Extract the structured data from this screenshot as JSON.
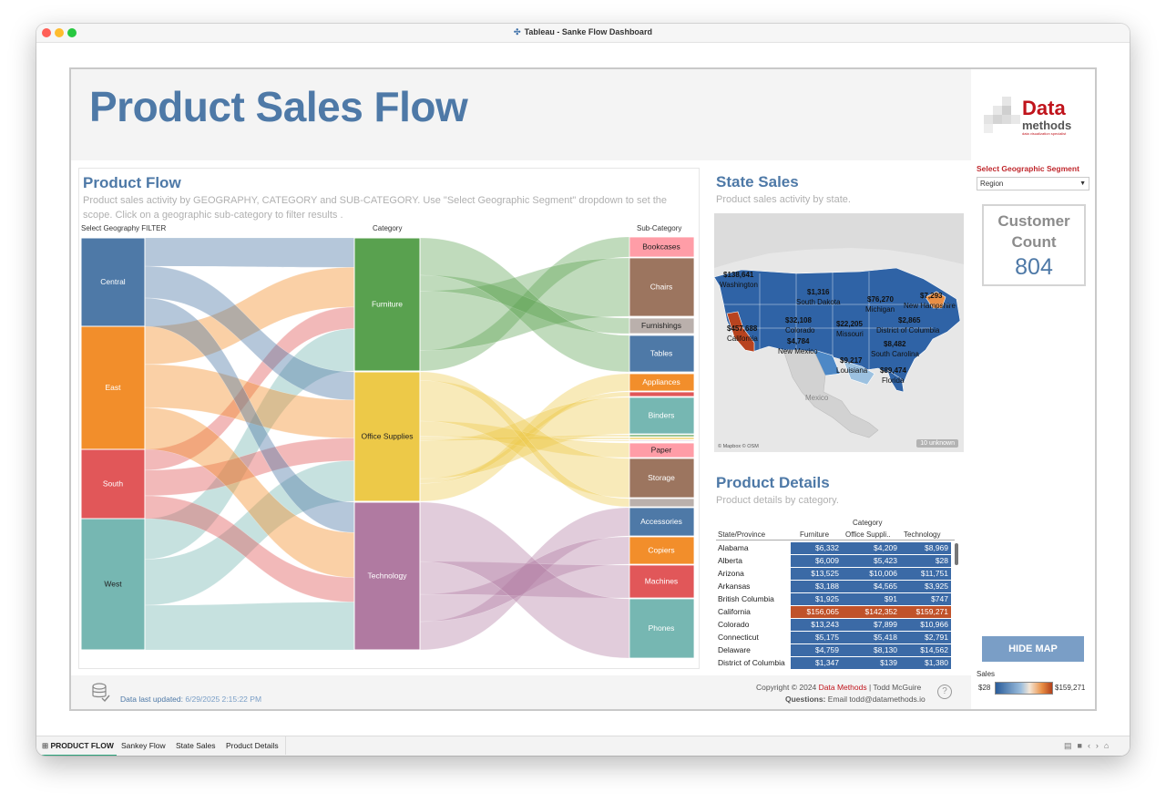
{
  "window": {
    "title": "Tableau - Sanke Flow Dashboard",
    "title_icon": "tableau-icon",
    "traffic_lights": [
      "#ff5f57",
      "#febc2e",
      "#28c840"
    ]
  },
  "header": {
    "title": "Product Sales Flow",
    "logo": {
      "word1": "Data",
      "word2": "methods",
      "tagline": "data visualization specialist"
    }
  },
  "product_flow": {
    "title": "Product Flow",
    "description": "Product sales activity by GEOGRAPHY, CATEGORY and SUB-CATEGORY.  Use \"Select Geographic Segment\" dropdown to set the scope.  Click on a geographic sub-category to filter results  .",
    "col_headers": [
      "Select Geography FILTER",
      "Category",
      "Sub-Category"
    ],
    "regions": [
      {
        "name": "Central",
        "color": "#4e79a7"
      },
      {
        "name": "East",
        "color": "#f28e2b"
      },
      {
        "name": "South",
        "color": "#e15759"
      },
      {
        "name": "West",
        "color": "#76b7b2"
      }
    ],
    "categories": [
      {
        "name": "Furniture",
        "color": "#59a14f",
        "flow": "#9fce97"
      },
      {
        "name": "Office Supplies",
        "color": "#edc948",
        "flow": "#f5e39a"
      },
      {
        "name": "Technology",
        "color": "#b07aa1",
        "flow": "#d6b5cd"
      }
    ],
    "subcategories": [
      {
        "name": "Bookcases",
        "color": "#ff9da7"
      },
      {
        "name": "Chairs",
        "color": "#9c755f"
      },
      {
        "name": "Furnishings",
        "color": "#bab0ac"
      },
      {
        "name": "Tables",
        "color": "#4e79a7"
      },
      {
        "name": "Appliances",
        "color": "#f28e2b"
      },
      {
        "name": "",
        "color": "#e15759"
      },
      {
        "name": "Binders",
        "color": "#76b7b2"
      },
      {
        "name": "",
        "color": "#59a14f"
      },
      {
        "name": "",
        "color": "#edc948"
      },
      {
        "name": "",
        "color": "#b07aa1"
      },
      {
        "name": "Paper",
        "color": "#ff9da7"
      },
      {
        "name": "Storage",
        "color": "#9c755f"
      },
      {
        "name": "",
        "color": "#bab0ac"
      },
      {
        "name": "Accessories",
        "color": "#4e79a7"
      },
      {
        "name": "Copiers",
        "color": "#f28e2b"
      },
      {
        "name": "Machines",
        "color": "#e15759"
      },
      {
        "name": "Phones",
        "color": "#76b7b2"
      }
    ]
  },
  "state_sales": {
    "title": "State Sales",
    "description": "Product sales activity by state.",
    "labels": [
      {
        "value": "$138,641",
        "state": "Washington"
      },
      {
        "value": "$1,316",
        "state": "South Dakota"
      },
      {
        "value": "$76,270",
        "state": "Michigan"
      },
      {
        "value": "$7,293",
        "state": "New Hampshire"
      },
      {
        "value": "$32,108",
        "state": "Colorado"
      },
      {
        "value": "$22,205",
        "state": "Missouri"
      },
      {
        "value": "$2,865",
        "state": "District of Columbia"
      },
      {
        "value": "$457,688",
        "state": "California"
      },
      {
        "value": "$4,784",
        "state": "New Mexico"
      },
      {
        "value": "$8,482",
        "state": "South Carolina"
      },
      {
        "value": "$9,217",
        "state": "Louisiana"
      },
      {
        "value": "$89,474",
        "state": "Florida"
      }
    ],
    "country_label": "Mexico",
    "attribution": "© Mapbox © OSM",
    "unknown_badge": "10 unknown"
  },
  "product_details": {
    "title": "Product Details",
    "description": "Product details by category.",
    "group_header": "Category",
    "row_header": "State/Province",
    "columns": [
      "Furniture",
      "Office Suppli..",
      "Technology"
    ],
    "rows": [
      {
        "name": "Alabama",
        "values": [
          "$6,332",
          "$4,209",
          "$8,969"
        ]
      },
      {
        "name": "Alberta",
        "values": [
          "$6,009",
          "$5,423",
          "$28"
        ]
      },
      {
        "name": "Arizona",
        "values": [
          "$13,525",
          "$10,006",
          "$11,751"
        ]
      },
      {
        "name": "Arkansas",
        "values": [
          "$3,188",
          "$4,565",
          "$3,925"
        ]
      },
      {
        "name": "British Columbia",
        "values": [
          "$1,925",
          "$91",
          "$747"
        ]
      },
      {
        "name": "California",
        "values": [
          "$156,065",
          "$142,352",
          "$159,271"
        ]
      },
      {
        "name": "Colorado",
        "values": [
          "$13,243",
          "$7,899",
          "$10,966"
        ]
      },
      {
        "name": "Connecticut",
        "values": [
          "$5,175",
          "$5,418",
          "$2,791"
        ]
      },
      {
        "name": "Delaware",
        "values": [
          "$4,759",
          "$8,130",
          "$14,562"
        ]
      },
      {
        "name": "District of Columbia",
        "values": [
          "$1,347",
          "$139",
          "$1,380"
        ]
      }
    ],
    "cell_colors": {
      "normal": "#3b6aa6",
      "high": "#c0522a"
    }
  },
  "filter": {
    "label": "Select Geographic Segment",
    "value": "Region"
  },
  "kpi": {
    "title_line1": "Customer",
    "title_line2": "Count",
    "value": "804"
  },
  "hide_map_label": "HIDE MAP",
  "sales_legend": {
    "title": "Sales",
    "min": "$28",
    "max": "$159,271"
  },
  "footer": {
    "updated_label": "Data last updated:",
    "updated_value": "6/29/2025 2:15:22 PM",
    "copyright_prefix": "Copyright © 2024",
    "copyright_brand": "Data Methods",
    "copyright_suffix": "| Todd McGuire",
    "questions_label": "Questions:",
    "questions_value": "Email todd@datamethods.io"
  },
  "sheet_tabs": [
    {
      "label": "PRODUCT FLOW",
      "active": true
    },
    {
      "label": "Sankey Flow",
      "active": false
    },
    {
      "label": "State Sales",
      "active": false
    },
    {
      "label": "Product Details",
      "active": false
    }
  ]
}
